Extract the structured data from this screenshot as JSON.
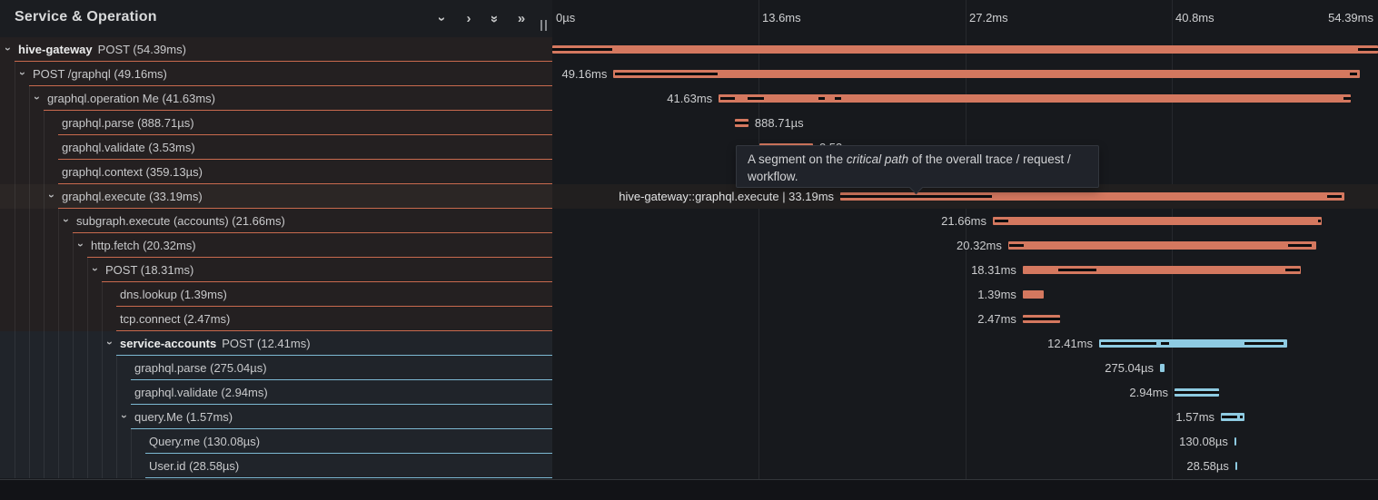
{
  "header": {
    "title": "Service & Operation",
    "controls": [
      {
        "name": "collapse-one-icon",
        "glyph": "›",
        "rotate": true
      },
      {
        "name": "expand-one-icon",
        "glyph": "›",
        "rotate": false
      },
      {
        "name": "collapse-all-icon",
        "glyph": "»",
        "rotate": true
      },
      {
        "name": "expand-all-icon",
        "glyph": "»",
        "rotate": false
      }
    ]
  },
  "axis": {
    "max_ms": 54.39,
    "ticks": [
      {
        "label": "0µs",
        "ms": 0,
        "align": "left",
        "gridline": false
      },
      {
        "label": "13.6ms",
        "ms": 13.6,
        "align": "left",
        "gridline": true
      },
      {
        "label": "27.2ms",
        "ms": 27.2,
        "align": "left",
        "gridline": true
      },
      {
        "label": "40.8ms",
        "ms": 40.8,
        "align": "left",
        "gridline": true
      },
      {
        "label": "54.39ms",
        "ms": 54.39,
        "align": "right",
        "gridline": false
      }
    ]
  },
  "colors": {
    "salmon_bar": "#d4785f",
    "salmon_line": "#c96a4e",
    "blue_bar": "#8ecbe2",
    "blue_line": "#7db9d3",
    "critical_path": "#0d0d0e"
  },
  "tooltip": {
    "part1": "A segment on the ",
    "em": "critical path",
    "part2": " of the overall trace / request / workflow."
  },
  "spans": [
    {
      "service": "hive-gateway",
      "name": "POST",
      "duration": "54.39ms",
      "level": 0,
      "expandable": true,
      "group": "gateway",
      "start_ms": 0,
      "dur_ms": 54.39,
      "bar_label": "",
      "label_side": "none",
      "crit": [
        [
          0,
          3.95
        ],
        [
          53.1,
          1.29
        ]
      ],
      "hover": false
    },
    {
      "service": "",
      "name": "POST /graphql",
      "duration": "49.16ms",
      "level": 1,
      "expandable": true,
      "group": "gateway",
      "start_ms": 4.03,
      "dur_ms": 49.16,
      "bar_label": "49.16ms",
      "label_side": "left",
      "crit": [
        [
          4.1,
          6.8
        ],
        [
          52.55,
          0.45
        ]
      ],
      "hover": false
    },
    {
      "service": "",
      "name": "graphql.operation Me",
      "duration": "41.63ms",
      "level": 2,
      "expandable": true,
      "group": "gateway",
      "start_ms": 10.96,
      "dur_ms": 41.63,
      "bar_label": "41.63ms",
      "label_side": "left",
      "crit": [
        [
          11.07,
          0.95
        ],
        [
          12.85,
          1.1
        ],
        [
          17.55,
          0.4
        ],
        [
          18.6,
          0.4
        ],
        [
          52.1,
          0.5
        ]
      ],
      "hover": false
    },
    {
      "service": "",
      "name": "graphql.parse",
      "duration": "888.71µs",
      "level": 3,
      "expandable": false,
      "group": "gateway",
      "start_ms": 12.03,
      "dur_ms": 0.889,
      "bar_label": "888.71µs",
      "label_side": "right",
      "crit": [
        [
          12.03,
          0.889
        ]
      ],
      "hover": false
    },
    {
      "service": "",
      "name": "graphql.validate",
      "duration": "3.53ms",
      "level": 3,
      "expandable": false,
      "group": "gateway",
      "start_ms": 13.64,
      "dur_ms": 3.53,
      "bar_label": "3.53ms",
      "label_side": "right",
      "crit": [],
      "hover": false
    },
    {
      "service": "",
      "name": "graphql.context",
      "duration": "359.13µs",
      "level": 3,
      "expandable": false,
      "group": "gateway",
      "start_ms": 17.29,
      "dur_ms": 0.359,
      "bar_label": "359.13µs",
      "label_side": "right",
      "crit": [],
      "hover": false
    },
    {
      "service": "",
      "name": "graphql.execute",
      "duration": "33.19ms",
      "level": 3,
      "expandable": true,
      "group": "gateway",
      "start_ms": 18.97,
      "dur_ms": 33.19,
      "bar_label": "hive-gateway::graphql.execute | 33.19ms",
      "label_side": "left",
      "crit": [
        [
          18.97,
          10.0
        ],
        [
          51.05,
          0.95
        ]
      ],
      "hover": true
    },
    {
      "service": "",
      "name": "subgraph.execute (accounts)",
      "duration": "21.66ms",
      "level": 4,
      "expandable": true,
      "group": "gateway",
      "start_ms": 29.02,
      "dur_ms": 21.66,
      "bar_label": "21.66ms",
      "label_side": "left",
      "crit": [
        [
          29.15,
          0.9
        ],
        [
          50.42,
          0.22
        ]
      ],
      "hover": false
    },
    {
      "service": "",
      "name": "http.fetch",
      "duration": "20.32ms",
      "level": 5,
      "expandable": true,
      "group": "gateway",
      "start_ms": 30.03,
      "dur_ms": 20.32,
      "bar_label": "20.32ms",
      "label_side": "left",
      "crit": [
        [
          30.1,
          0.95
        ],
        [
          48.45,
          1.55
        ]
      ],
      "hover": false
    },
    {
      "service": "",
      "name": "POST",
      "duration": "18.31ms",
      "level": 6,
      "expandable": true,
      "group": "gateway",
      "start_ms": 30.99,
      "dur_ms": 18.31,
      "bar_label": "18.31ms",
      "label_side": "left",
      "crit": [
        [
          33.35,
          2.5
        ],
        [
          48.3,
          0.95
        ]
      ],
      "hover": false
    },
    {
      "service": "",
      "name": "dns.lookup",
      "duration": "1.39ms",
      "level": 7,
      "expandable": false,
      "group": "gateway",
      "start_ms": 30.99,
      "dur_ms": 1.39,
      "bar_label": "1.39ms",
      "label_side": "left",
      "crit": [],
      "hover": false
    },
    {
      "service": "",
      "name": "tcp.connect",
      "duration": "2.47ms",
      "level": 7,
      "expandable": false,
      "group": "gateway",
      "start_ms": 30.99,
      "dur_ms": 2.47,
      "bar_label": "2.47ms",
      "label_side": "left",
      "crit": [
        [
          30.99,
          2.47
        ]
      ],
      "hover": false
    },
    {
      "service": "service-accounts",
      "name": "POST",
      "duration": "12.41ms",
      "level": 7,
      "expandable": true,
      "group": "accounts",
      "start_ms": 36.02,
      "dur_ms": 12.41,
      "bar_label": "12.41ms",
      "label_side": "left",
      "crit": [
        [
          36.15,
          3.65
        ],
        [
          40.1,
          0.5
        ],
        [
          45.6,
          2.55
        ]
      ],
      "hover": false
    },
    {
      "service": "",
      "name": "graphql.parse",
      "duration": "275.04µs",
      "level": 8,
      "expandable": false,
      "group": "accounts",
      "start_ms": 40.03,
      "dur_ms": 0.275,
      "bar_label": "275.04µs",
      "label_side": "left",
      "crit": [],
      "hover": false
    },
    {
      "service": "",
      "name": "graphql.validate",
      "duration": "2.94ms",
      "level": 8,
      "expandable": false,
      "group": "accounts",
      "start_ms": 40.99,
      "dur_ms": 2.94,
      "bar_label": "2.94ms",
      "label_side": "left",
      "crit": [
        [
          40.99,
          2.94
        ]
      ],
      "hover": false
    },
    {
      "service": "",
      "name": "query.Me",
      "duration": "1.57ms",
      "level": 8,
      "expandable": true,
      "group": "accounts",
      "start_ms": 44.04,
      "dur_ms": 1.57,
      "bar_label": "1.57ms",
      "label_side": "left",
      "crit": [
        [
          44.08,
          1.05
        ],
        [
          45.3,
          0.2
        ]
      ],
      "hover": false
    },
    {
      "service": "",
      "name": "Query.me",
      "duration": "130.08µs",
      "level": 9,
      "expandable": false,
      "group": "accounts",
      "start_ms": 44.93,
      "dur_ms": 0.13,
      "bar_label": "130.08µs",
      "label_side": "left",
      "crit": [],
      "hover": false
    },
    {
      "service": "",
      "name": "User.id",
      "duration": "28.58µs",
      "level": 9,
      "expandable": false,
      "group": "accounts",
      "start_ms": 44.99,
      "dur_ms": 0.029,
      "bar_label": "28.58µs",
      "label_side": "left",
      "crit": [],
      "hover": false
    }
  ]
}
